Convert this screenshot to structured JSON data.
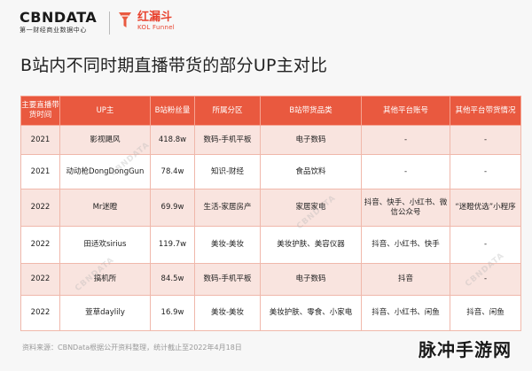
{
  "header": {
    "cbn_logo": "CBNDATA",
    "cbn_sub": "第一财经商业数据中心",
    "kol_logo": "红漏斗",
    "kol_sub": "KOL Funnel",
    "accent_color": "#e9593f"
  },
  "title": "B站内不同时期直播带货的部分UP主对比",
  "table": {
    "headers": [
      "主要直播带货时间",
      "UP主",
      "B站粉丝量",
      "所属分区",
      "B站带货品类",
      "其他平台账号",
      "其他平台带货情况"
    ],
    "rows": [
      [
        "2021",
        "影视飓风",
        "418.8w",
        "数码-手机平板",
        "电子数码",
        "-",
        "-"
      ],
      [
        "2021",
        "动动枪DongDongGun",
        "78.4w",
        "知识-财经",
        "食品饮料",
        "-",
        "-"
      ],
      [
        "2022",
        "Mr迷瞪",
        "69.9w",
        "生活-家居房产",
        "家居家电",
        "抖音、快手、小红书、微信公众号",
        "“迷瞪优选”小程序"
      ],
      [
        "2022",
        "田适欢sirius",
        "119.7w",
        "美妆-美妆",
        "美妆护肤、美容仪器",
        "抖音、小红书、快手",
        "-"
      ],
      [
        "2022",
        "搞机所",
        "84.5w",
        "数码-手机平板",
        "电子数码",
        "抖音",
        "-"
      ],
      [
        "2022",
        "萱草daylily",
        "16.9w",
        "美妆-美妆",
        "美妆护肤、零食、小家电",
        "抖音、小红书、闲鱼",
        "抖音、闲鱼"
      ]
    ]
  },
  "source": "资料来源：CBNData根据公开资料整理，统计截止至2022年4月18日",
  "watermark": "脉冲手游网",
  "faint_mark": "CBNDATA"
}
